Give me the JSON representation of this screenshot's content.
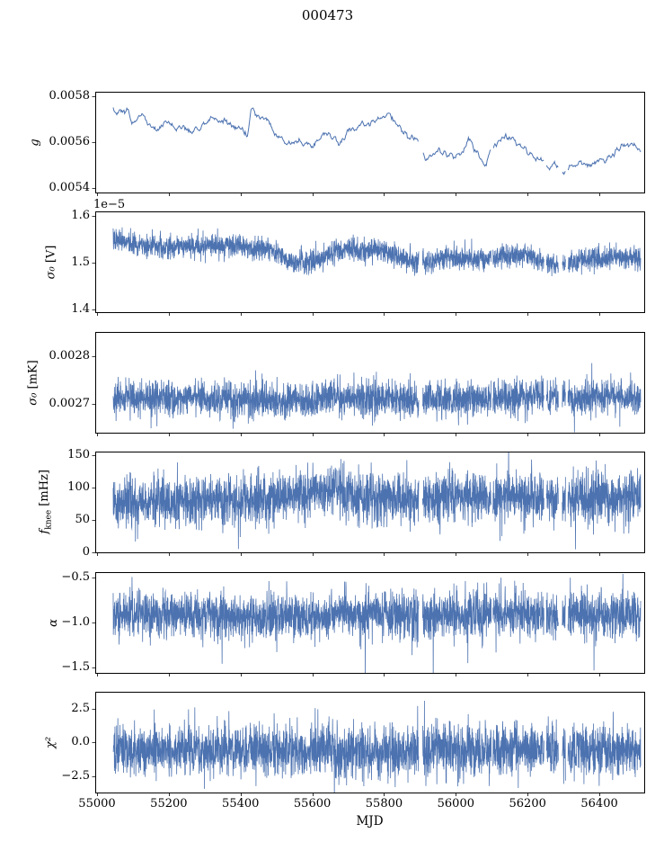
{
  "chart_data": {
    "type": "line",
    "title": "000473",
    "xlabel": "MJD",
    "line_color": "#4C72B0",
    "background": "#ffffff",
    "legend": "none",
    "grid": false,
    "xlim": [
      54995,
      56525
    ],
    "x_data_range": [
      55045,
      56515
    ],
    "x_ticks": [
      {
        "value": 55000,
        "label": "55000"
      },
      {
        "value": 55200,
        "label": "55200"
      },
      {
        "value": 55400,
        "label": "55400"
      },
      {
        "value": 55600,
        "label": "55600"
      },
      {
        "value": 55800,
        "label": "55800"
      },
      {
        "value": 56000,
        "label": "56000"
      },
      {
        "value": 56200,
        "label": "56200"
      },
      {
        "value": 56400,
        "label": "56400"
      }
    ],
    "gaps": [
      [
        55897,
        55907
      ],
      [
        56099,
        56103
      ],
      [
        56246,
        56252
      ],
      [
        56286,
        56296
      ],
      [
        56306,
        56312
      ]
    ],
    "subplots": [
      {
        "ylabel": "g",
        "ylim": [
          0.00538,
          0.00582
        ],
        "yticks": [
          {
            "value": 0.0054,
            "label": "0.0054"
          },
          {
            "value": 0.0056,
            "label": "0.0056"
          },
          {
            "value": 0.0058,
            "label": "0.0058"
          }
        ],
        "style": {
          "dt": 2,
          "noise_std": 1.3e-05,
          "rho": 0.88,
          "seed": 101,
          "lw": 1.0
        },
        "baseline": {
          "x": [
            55045,
            55080,
            55110,
            55140,
            55170,
            55200,
            55230,
            55260,
            55290,
            55320,
            55350,
            55380,
            55405,
            55418,
            55430,
            55450,
            55475,
            55500,
            55525,
            55550,
            55575,
            55600,
            55625,
            55650,
            55675,
            55700,
            55730,
            55760,
            55790,
            55815,
            55840,
            55865,
            55890,
            55910,
            55935,
            55960,
            55985,
            56010,
            56035,
            56060,
            56080,
            56100,
            56125,
            56150,
            56175,
            56200,
            56225,
            56250,
            56275,
            56300,
            56320,
            56345,
            56370,
            56395,
            56420,
            56445,
            56465,
            56490,
            56515
          ],
          "y": [
            0.00575,
            0.00573,
            0.0057,
            0.00569,
            0.00567,
            0.00568,
            0.00566,
            0.00564,
            0.00567,
            0.00569,
            0.0057,
            0.00567,
            0.00566,
            0.00561,
            0.00574,
            0.00572,
            0.00569,
            0.00565,
            0.00561,
            0.00559,
            0.0056,
            0.00559,
            0.00562,
            0.00564,
            0.0056,
            0.00565,
            0.00567,
            0.00566,
            0.00568,
            0.0057,
            0.00567,
            0.00563,
            0.00561,
            0.00553,
            0.00554,
            0.00556,
            0.00552,
            0.00555,
            0.00559,
            0.00555,
            0.00551,
            0.00555,
            0.00559,
            0.00562,
            0.00561,
            0.00557,
            0.00554,
            0.00551,
            0.00552,
            0.00548,
            0.0055,
            0.00552,
            0.00551,
            0.00552,
            0.00554,
            0.00557,
            0.0056,
            0.00559,
            0.00556
          ]
        }
      },
      {
        "ylabel_main": "σ₀",
        "ylabel_unit": " [V]",
        "offset_text": "1e−5",
        "ylim": [
          1.395,
          1.61
        ],
        "yticks": [
          {
            "value": 1.4,
            "label": "1.4"
          },
          {
            "value": 1.5,
            "label": "1.5"
          },
          {
            "value": 1.6,
            "label": "1.6"
          }
        ],
        "style": {
          "dt": 0.5,
          "noise_std": 0.012,
          "seed": 202,
          "lw": 0.8
        },
        "baseline": {
          "x": [
            55045,
            55100,
            55150,
            55200,
            55250,
            55300,
            55350,
            55400,
            55430,
            55470,
            55505,
            55530,
            55560,
            55600,
            55630,
            55660,
            55700,
            55740,
            55780,
            55820,
            55850,
            55880,
            55910,
            55950,
            55990,
            56030,
            56070,
            56110,
            56150,
            56190,
            56220,
            56260,
            56300,
            56340,
            56380,
            56420,
            56460,
            56515
          ],
          "y": [
            1.55,
            1.543,
            1.536,
            1.532,
            1.534,
            1.536,
            1.537,
            1.536,
            1.529,
            1.532,
            1.524,
            1.507,
            1.502,
            1.504,
            1.513,
            1.524,
            1.528,
            1.527,
            1.53,
            1.52,
            1.512,
            1.505,
            1.5,
            1.507,
            1.509,
            1.51,
            1.508,
            1.512,
            1.515,
            1.519,
            1.509,
            1.501,
            1.498,
            1.501,
            1.505,
            1.508,
            1.51,
            1.509
          ]
        }
      },
      {
        "ylabel_main": "σ₀",
        "ylabel_unit": " [mK]",
        "ylim": [
          0.00264,
          0.00285
        ],
        "yticks": [
          {
            "value": 0.0027,
            "label": "0.0027"
          },
          {
            "value": 0.0028,
            "label": "0.0028"
          }
        ],
        "style": {
          "dt": 0.5,
          "noise_std": 1.8e-05,
          "seed": 303,
          "lw": 0.8
        },
        "baseline": {
          "x": [
            55045,
            55300,
            55500,
            55560,
            55650,
            55800,
            55900,
            56050,
            56200,
            56300,
            56400,
            56515
          ],
          "y": [
            0.002714,
            0.002712,
            0.002708,
            0.002704,
            0.002712,
            0.00271,
            0.002708,
            0.002712,
            0.002714,
            0.002713,
            0.002714,
            0.002712
          ]
        }
      },
      {
        "ylabel_main": "f",
        "ylabel_sub": "knee",
        "ylabel_unit": " [mHz]",
        "ylim": [
          0,
          155
        ],
        "yticks": [
          {
            "value": 0,
            "label": "0"
          },
          {
            "value": 50,
            "label": "50"
          },
          {
            "value": 100,
            "label": "100"
          },
          {
            "value": 150,
            "label": "150"
          }
        ],
        "style": {
          "dt": 0.5,
          "noise_std": 20,
          "seed": 404,
          "lw": 0.8
        },
        "baseline": {
          "x": [
            55045,
            55200,
            55350,
            55500,
            55600,
            55650,
            55700,
            55800,
            55900,
            56000,
            56100,
            56200,
            56300,
            56400,
            56515
          ],
          "y": [
            76,
            79,
            80,
            83,
            92,
            98,
            86,
            83,
            81,
            88,
            83,
            86,
            82,
            88,
            86
          ]
        }
      },
      {
        "ylabel": "α",
        "ylim": [
          -1.56,
          -0.44
        ],
        "yticks": [
          {
            "value": -1.5,
            "label": "−1.5"
          },
          {
            "value": -1.0,
            "label": "−1.0"
          },
          {
            "value": -0.5,
            "label": "−0.5"
          }
        ],
        "style": {
          "dt": 0.5,
          "noise_std": 0.13,
          "seed": 505,
          "lw": 0.8,
          "spike_prob": 0.004,
          "spike_amp": -0.4
        },
        "baseline": {
          "x": [
            55045,
            55300,
            55500,
            55700,
            55900,
            56100,
            56300,
            56515
          ],
          "y": [
            -0.9,
            -0.91,
            -0.95,
            -0.9,
            -0.92,
            -0.9,
            -0.92,
            -0.9
          ]
        }
      },
      {
        "ylabel": "χ²",
        "ylim": [
          -3.7,
          3.75
        ],
        "yticks": [
          {
            "value": -2.5,
            "label": "−2.5"
          },
          {
            "value": 0.0,
            "label": "0.0"
          },
          {
            "value": 2.5,
            "label": "2.5"
          }
        ],
        "style": {
          "dt": 0.5,
          "noise_std": 0.95,
          "seed": 606,
          "lw": 0.8
        },
        "baseline": {
          "x": [
            55045,
            56515
          ],
          "y": [
            -0.6,
            -0.6
          ]
        }
      }
    ]
  }
}
